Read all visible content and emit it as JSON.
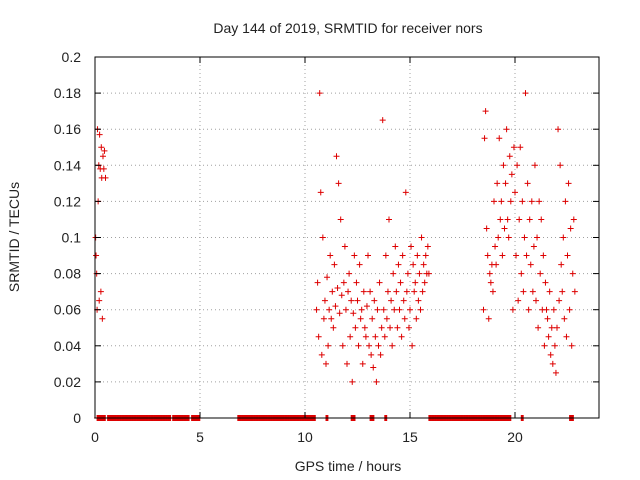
{
  "chart_data": {
    "type": "scatter",
    "title": "Day 144 of 2019, SRMTID for receiver nors",
    "xlabel": "GPS time / hours",
    "ylabel": "SRMTID / TECUs",
    "xlim": [
      0,
      24
    ],
    "ylim": [
      0,
      0.2
    ],
    "xticks": [
      0,
      5,
      10,
      15,
      20
    ],
    "xtick_labels": [
      "0",
      "5",
      "10",
      "15",
      "20"
    ],
    "yticks": [
      0,
      0.02,
      0.04,
      0.06,
      0.08,
      0.1,
      0.12,
      0.14,
      0.16,
      0.18,
      0.2
    ],
    "ytick_labels": [
      "0",
      "0.02",
      "0.04",
      "0.06",
      "0.08",
      "0.1",
      "0.12",
      "0.14",
      "0.16",
      "0.18",
      "0.2"
    ],
    "grid": true,
    "marker": "+",
    "color": "#dd0000",
    "series": [
      {
        "name": "nors",
        "x": [
          0.03,
          0.05,
          0.08,
          0.1,
          0.12,
          0.15,
          0.18,
          0.2,
          0.22,
          0.25,
          0.28,
          0.3,
          0.32,
          0.35,
          0.38,
          0.42,
          0.45,
          0.5,
          10.55,
          10.6,
          10.65,
          10.7,
          10.75,
          10.8,
          10.85,
          10.9,
          10.95,
          11.0,
          11.05,
          11.1,
          11.15,
          11.2,
          11.25,
          11.3,
          11.35,
          11.4,
          11.45,
          11.5,
          11.55,
          11.6,
          11.65,
          11.7,
          11.75,
          11.8,
          11.85,
          11.9,
          11.95,
          12.0,
          12.05,
          12.1,
          12.15,
          12.2,
          12.25,
          12.3,
          12.35,
          12.4,
          12.45,
          12.5,
          12.55,
          12.6,
          12.65,
          12.7,
          12.75,
          12.8,
          12.85,
          12.9,
          12.95,
          13.0,
          13.05,
          13.1,
          13.15,
          13.2,
          13.25,
          13.3,
          13.35,
          13.4,
          13.45,
          13.5,
          13.55,
          13.6,
          13.65,
          13.7,
          13.75,
          13.8,
          13.85,
          13.9,
          13.95,
          14.0,
          14.05,
          14.1,
          14.15,
          14.2,
          14.25,
          14.3,
          14.35,
          14.4,
          14.45,
          14.5,
          14.55,
          14.6,
          14.65,
          14.7,
          14.75,
          14.8,
          14.85,
          14.9,
          14.95,
          15.0,
          15.05,
          15.1,
          15.15,
          15.2,
          15.25,
          15.3,
          15.35,
          15.4,
          15.45,
          15.5,
          15.55,
          15.6,
          15.65,
          15.7,
          15.75,
          15.8,
          15.85,
          15.9,
          18.5,
          18.55,
          18.6,
          18.65,
          18.7,
          18.75,
          18.8,
          18.85,
          18.9,
          18.95,
          19.0,
          19.05,
          19.1,
          19.15,
          19.2,
          19.25,
          19.3,
          19.35,
          19.4,
          19.45,
          19.5,
          19.55,
          19.6,
          19.65,
          19.7,
          19.75,
          19.8,
          19.85,
          19.9,
          19.95,
          20.0,
          20.05,
          20.1,
          20.15,
          20.2,
          20.25,
          20.3,
          20.35,
          20.4,
          20.45,
          20.5,
          20.55,
          20.6,
          20.65,
          20.7,
          20.75,
          20.8,
          20.85,
          20.9,
          20.95,
          21.0,
          21.05,
          21.1,
          21.15,
          21.2,
          21.25,
          21.3,
          21.35,
          21.4,
          21.45,
          21.5,
          21.55,
          21.6,
          21.65,
          21.7,
          21.75,
          21.8,
          21.85,
          21.9,
          21.95,
          22.0,
          22.05,
          22.1,
          22.15,
          22.2,
          22.25,
          22.3,
          22.35,
          22.4,
          22.45,
          22.5,
          22.55,
          22.6,
          22.65,
          22.7,
          22.75,
          22.8,
          22.85
        ],
        "y": [
          0.1,
          0.09,
          0.08,
          0.06,
          0.16,
          0.12,
          0.14,
          0.065,
          0.157,
          0.138,
          0.07,
          0.15,
          0.133,
          0.055,
          0.145,
          0.138,
          0.148,
          0.133,
          0.06,
          0.075,
          0.045,
          0.18,
          0.125,
          0.035,
          0.1,
          0.055,
          0.065,
          0.03,
          0.078,
          0.04,
          0.06,
          0.09,
          0.055,
          0.07,
          0.05,
          0.085,
          0.062,
          0.145,
          0.072,
          0.13,
          0.058,
          0.11,
          0.068,
          0.04,
          0.075,
          0.095,
          0.06,
          0.03,
          0.07,
          0.08,
          0.045,
          0.065,
          0.02,
          0.058,
          0.09,
          0.05,
          0.075,
          0.065,
          0.04,
          0.085,
          0.055,
          0.06,
          0.03,
          0.07,
          0.05,
          0.045,
          0.062,
          0.09,
          0.04,
          0.07,
          0.035,
          0.055,
          0.028,
          0.065,
          0.045,
          0.02,
          0.06,
          0.04,
          0.075,
          0.035,
          0.05,
          0.165,
          0.06,
          0.045,
          0.09,
          0.055,
          0.07,
          0.11,
          0.05,
          0.065,
          0.04,
          0.08,
          0.06,
          0.095,
          0.07,
          0.05,
          0.085,
          0.06,
          0.075,
          0.045,
          0.09,
          0.065,
          0.055,
          0.125,
          0.07,
          0.08,
          0.05,
          0.06,
          0.095,
          0.04,
          0.085,
          0.07,
          0.075,
          0.055,
          0.09,
          0.065,
          0.08,
          0.06,
          0.1,
          0.07,
          0.085,
          0.075,
          0.09,
          0.08,
          0.095,
          0.08,
          0.06,
          0.155,
          0.17,
          0.105,
          0.09,
          0.055,
          0.08,
          0.075,
          0.085,
          0.07,
          0.12,
          0.095,
          0.085,
          0.13,
          0.1,
          0.155,
          0.11,
          0.12,
          0.09,
          0.14,
          0.105,
          0.13,
          0.16,
          0.11,
          0.1,
          0.145,
          0.12,
          0.135,
          0.06,
          0.15,
          0.125,
          0.09,
          0.14,
          0.065,
          0.11,
          0.15,
          0.08,
          0.12,
          0.07,
          0.1,
          0.18,
          0.09,
          0.13,
          0.06,
          0.11,
          0.085,
          0.12,
          0.07,
          0.095,
          0.14,
          0.065,
          0.1,
          0.05,
          0.12,
          0.08,
          0.11,
          0.06,
          0.09,
          0.04,
          0.075,
          0.06,
          0.055,
          0.045,
          0.07,
          0.035,
          0.05,
          0.03,
          0.06,
          0.04,
          0.025,
          0.05,
          0.16,
          0.065,
          0.14,
          0.085,
          0.07,
          0.1,
          0.055,
          0.12,
          0.045,
          0.09,
          0.13,
          0.06,
          0.105,
          0.04,
          0.08,
          0.11,
          0.07
        ],
        "zero_ranges": [
          [
            0.1,
            0.5
          ],
          [
            0.6,
            3.6
          ],
          [
            3.7,
            4.5
          ],
          [
            4.6,
            5.0
          ],
          [
            6.8,
            10.5
          ],
          [
            11.0,
            11.1
          ],
          [
            12.2,
            12.4
          ],
          [
            13.1,
            13.3
          ],
          [
            13.8,
            13.9
          ],
          [
            15.9,
            19.8
          ],
          [
            20.3,
            20.4
          ],
          [
            22.6,
            22.8
          ]
        ]
      }
    ]
  }
}
